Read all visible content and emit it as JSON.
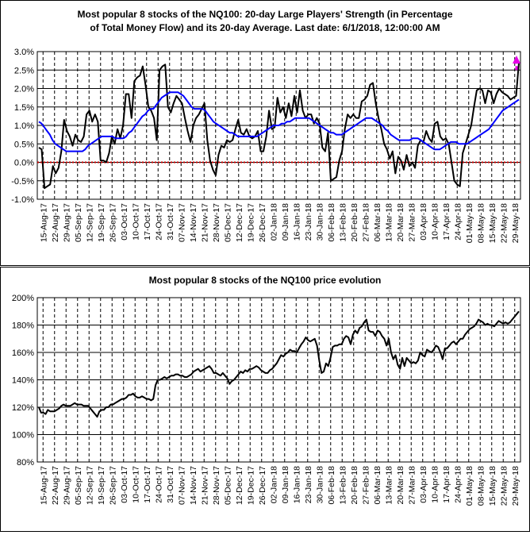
{
  "chart_data": [
    {
      "type": "line",
      "title_line1": "Most popular 8 stocks of the NQ100: 20-day Large Players' Strength (in Percentage",
      "title_line2": "of Total Money Flow) and its 20-day Average. Last date: 6/1/2018, 12:00:00 AM",
      "ylim": [
        -1.0,
        3.0
      ],
      "y_ticks": [
        "-1.0%",
        "-0.5%",
        "0.0%",
        "0.5%",
        "1.0%",
        "1.5%",
        "2.0%",
        "2.5%",
        "3.0%"
      ],
      "x_tick_labels": [
        "15-Aug-17",
        "22-Aug-17",
        "29-Aug-17",
        "05-Sep-17",
        "12-Sep-17",
        "19-Sep-17",
        "26-Sep-17",
        "03-Oct-17",
        "10-Oct-17",
        "17-Oct-17",
        "24-Oct-17",
        "31-Oct-17",
        "07-Nov-17",
        "14-Nov-17",
        "21-Nov-17",
        "28-Nov-17",
        "05-Dec-17",
        "12-Dec-17",
        "19-Dec-17",
        "26-Dec-17",
        "02-Jan-18",
        "09-Jan-18",
        "16-Jan-18",
        "23-Jan-18",
        "30-Jan-18",
        "06-Feb-18",
        "13-Feb-18",
        "20-Feb-18",
        "27-Feb-18",
        "06-Mar-18",
        "13-Mar-18",
        "20-Mar-18",
        "27-Mar-18",
        "03-Apr-18",
        "10-Apr-18",
        "17-Apr-18",
        "24-Apr-18",
        "01-May-18",
        "08-May-18",
        "15-May-18",
        "22-May-18",
        "29-May-18"
      ],
      "grid": true,
      "series": [
        {
          "color": "#000000",
          "values": [
            0.4,
            0.35,
            -0.7,
            -0.65,
            -0.6,
            -0.1,
            -0.3,
            -0.15,
            0.3,
            1.15,
            0.85,
            0.7,
            0.45,
            0.75,
            0.6,
            0.55,
            0.7,
            1.3,
            1.4,
            1.1,
            1.3,
            1.1,
            0.05,
            0.05,
            0.0,
            0.25,
            0.7,
            0.5,
            0.9,
            0.65,
            1.0,
            1.85,
            1.85,
            1.2,
            2.2,
            2.3,
            2.35,
            2.6,
            2.1,
            1.5,
            1.4,
            1.2,
            0.6,
            2.5,
            2.6,
            2.65,
            1.5,
            1.35,
            1.6,
            1.8,
            1.7,
            1.6,
            1.2,
            0.85,
            0.55,
            1.0,
            1.2,
            1.3,
            1.45,
            1.6,
            0.6,
            0.05,
            -0.2,
            -0.35,
            0.2,
            0.45,
            0.4,
            0.6,
            0.55,
            0.6,
            0.9,
            1.15,
            0.8,
            0.75,
            0.9,
            0.7,
            0.65,
            0.7,
            0.85,
            0.3,
            0.3,
            0.7,
            1.4,
            0.9,
            0.95,
            1.75,
            1.35,
            1.5,
            1.2,
            1.6,
            1.25,
            1.8,
            1.35,
            1.95,
            1.4,
            1.2,
            1.3,
            1.3,
            1.05,
            1.2,
            1.05,
            0.4,
            0.3,
            0.8,
            -0.5,
            -0.45,
            -0.4,
            0.05,
            0.3,
            0.9,
            1.3,
            1.2,
            1.3,
            1.2,
            1.2,
            1.65,
            1.7,
            1.8,
            2.1,
            2.15,
            1.6,
            1.2,
            0.9,
            0.5,
            0.35,
            0.1,
            0.3,
            -0.3,
            0.15,
            0.05,
            -0.2,
            0.2,
            -0.1,
            0.0,
            -0.15,
            0.45,
            0.6,
            0.55,
            0.85,
            0.65,
            0.55,
            1.05,
            1.1,
            0.7,
            0.6,
            0.65,
            0.5,
            0.0,
            -0.5,
            -0.6,
            -0.65,
            0.25,
            0.5,
            0.75,
            1.0,
            1.5,
            1.95,
            2.0,
            1.95,
            1.6,
            1.95,
            1.9,
            1.6,
            1.85,
            2.0,
            1.9,
            1.85,
            1.8,
            1.7,
            1.75,
            1.8,
            2.7
          ]
        },
        {
          "color": "#0000ff",
          "values": [
            1.1,
            1.05,
            0.95,
            0.85,
            0.75,
            0.6,
            0.5,
            0.45,
            0.4,
            0.35,
            0.3,
            0.3,
            0.3,
            0.3,
            0.3,
            0.3,
            0.3,
            0.35,
            0.45,
            0.5,
            0.55,
            0.6,
            0.65,
            0.7,
            0.7,
            0.7,
            0.7,
            0.7,
            0.65,
            0.65,
            0.65,
            0.65,
            0.7,
            0.8,
            0.85,
            0.95,
            1.05,
            1.15,
            1.25,
            1.3,
            1.4,
            1.45,
            1.45,
            1.55,
            1.65,
            1.75,
            1.8,
            1.85,
            1.9,
            1.9,
            1.9,
            1.9,
            1.85,
            1.8,
            1.7,
            1.6,
            1.5,
            1.45,
            1.45,
            1.45,
            1.45,
            1.4,
            1.3,
            1.2,
            1.1,
            1.05,
            1.0,
            0.95,
            0.9,
            0.85,
            0.8,
            0.8,
            0.75,
            0.7,
            0.7,
            0.7,
            0.7,
            0.7,
            0.7,
            0.7,
            0.7,
            0.75,
            0.8,
            0.85,
            0.9,
            0.95,
            1.0,
            1.0,
            1.0,
            1.05,
            1.05,
            1.1,
            1.1,
            1.15,
            1.2,
            1.2,
            1.2,
            1.2,
            1.2,
            1.2,
            1.15,
            1.1,
            1.05,
            1.0,
            0.95,
            0.9,
            0.85,
            0.8,
            0.8,
            0.75,
            0.75,
            0.75,
            0.8,
            0.85,
            0.9,
            0.95,
            1.0,
            1.05,
            1.1,
            1.15,
            1.2,
            1.2,
            1.2,
            1.15,
            1.1,
            1.05,
            1.0,
            0.9,
            0.85,
            0.75,
            0.7,
            0.65,
            0.6,
            0.6,
            0.6,
            0.6,
            0.6,
            0.65,
            0.65,
            0.65,
            0.6,
            0.55,
            0.5,
            0.45,
            0.4,
            0.35,
            0.35,
            0.35,
            0.4,
            0.45,
            0.5,
            0.55,
            0.55,
            0.55,
            0.5,
            0.5,
            0.5,
            0.5,
            0.55,
            0.6,
            0.65,
            0.7,
            0.75,
            0.8,
            0.85,
            0.9,
            1.0,
            1.1,
            1.2,
            1.3,
            1.4,
            1.45,
            1.5,
            1.55,
            1.6,
            1.65,
            1.7
          ]
        }
      ],
      "annotation": {
        "type": "dashed-up-arrow",
        "color": "#e600e6"
      }
    },
    {
      "type": "line",
      "title": "Most popular 8 stocks of the NQ100 price evolution",
      "ylim": [
        80,
        200
      ],
      "y_ticks": [
        "80%",
        "100%",
        "120%",
        "140%",
        "160%",
        "180%",
        "200%"
      ],
      "x_tick_labels": [
        "15-Aug-17",
        "22-Aug-17",
        "29-Aug-17",
        "05-Sep-17",
        "12-Sep-17",
        "19-Sep-17",
        "26-Sep-17",
        "03-Oct-17",
        "10-Oct-17",
        "17-Oct-17",
        "24-Oct-17",
        "31-Oct-17",
        "07-Nov-17",
        "14-Nov-17",
        "21-Nov-17",
        "28-Nov-17",
        "05-Dec-17",
        "12-Dec-17",
        "19-Dec-17",
        "26-Dec-17",
        "02-Jan-18",
        "09-Jan-18",
        "16-Jan-18",
        "23-Jan-18",
        "30-Jan-18",
        "06-Feb-18",
        "13-Feb-18",
        "20-Feb-18",
        "27-Feb-18",
        "06-Mar-18",
        "13-Mar-18",
        "20-Mar-18",
        "27-Mar-18",
        "03-Apr-18",
        "10-Apr-18",
        "17-Apr-18",
        "24-Apr-18",
        "01-May-18",
        "08-May-18",
        "15-May-18",
        "22-May-18",
        "29-May-18"
      ],
      "grid": true,
      "series": [
        {
          "color": "#000000",
          "values": [
            120,
            116,
            116,
            115,
            118,
            117,
            117,
            117,
            118,
            119,
            121,
            122,
            121,
            121,
            121,
            122,
            123,
            122,
            122,
            122,
            121,
            121,
            121,
            119,
            117,
            115,
            113,
            117,
            118,
            118,
            120,
            120,
            122,
            122,
            123,
            124,
            125,
            126,
            126,
            127,
            129,
            129,
            130,
            128,
            127,
            127,
            128,
            127,
            126,
            126,
            125,
            126,
            136,
            140,
            140,
            141,
            142,
            141,
            142,
            143,
            143,
            144,
            144,
            143,
            143,
            142,
            142,
            143,
            144,
            146,
            147,
            148,
            146,
            147,
            148,
            149,
            150,
            148,
            145,
            145,
            144,
            143,
            145,
            143,
            141,
            137,
            139,
            140,
            142,
            144,
            146,
            145,
            147,
            146,
            148,
            148,
            149,
            150,
            149,
            147,
            146,
            145,
            145,
            147,
            148,
            150,
            152,
            155,
            158,
            157,
            159,
            160,
            162,
            161,
            161,
            160,
            163,
            166,
            168,
            171,
            169,
            168,
            169,
            170,
            165,
            154,
            145,
            146,
            152,
            150,
            156,
            164,
            165,
            165,
            166,
            166,
            170,
            172,
            171,
            166,
            173,
            176,
            174,
            178,
            179,
            182,
            184,
            176,
            175,
            175,
            172,
            176,
            175,
            172,
            170,
            165,
            170,
            160,
            155,
            158,
            151,
            148,
            156,
            150,
            156,
            154,
            152,
            153,
            152,
            154,
            160,
            158,
            157,
            162,
            161,
            160,
            162,
            165,
            164,
            160,
            155,
            163,
            163,
            165,
            167,
            168,
            166,
            168,
            170,
            170,
            173,
            175,
            177,
            178,
            179,
            181,
            184,
            183,
            182,
            180,
            181,
            180,
            180,
            179,
            181,
            183,
            182,
            181,
            182,
            181,
            182,
            184,
            186,
            188,
            190
          ]
        }
      ]
    }
  ]
}
